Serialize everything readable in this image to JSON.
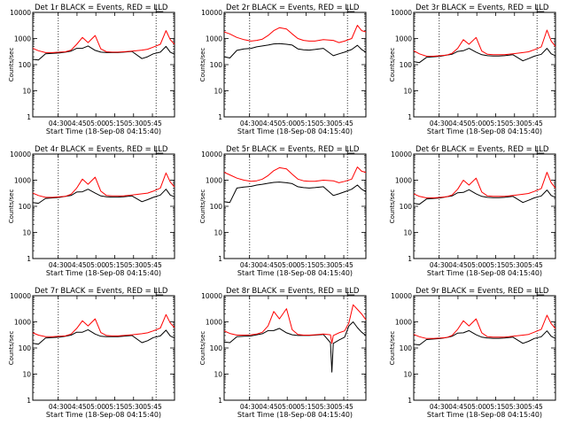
{
  "figure": {
    "x_tick_labels": [
      "04:30",
      "04:45",
      "05:00",
      "05:15",
      "05:30",
      "05:45"
    ],
    "y_tick_labels": [
      "1",
      "10",
      "100",
      "1000",
      "10000"
    ],
    "colors": {
      "events": "#000000",
      "lld": "#ff0000"
    }
  },
  "chart_data": [
    {
      "type": "line",
      "title": "Det 1r BLACK = Events, RED = LLD",
      "xlabel": "Start Time (18-Sep-08 04:15:40)",
      "ylabel": "Counts/sec",
      "y_scale": "log",
      "ylim": [
        1,
        10000
      ],
      "x": [
        0,
        4,
        9,
        14,
        19,
        23,
        27,
        31,
        35,
        39,
        44,
        48,
        52,
        56,
        60,
        64,
        70,
        77,
        81,
        85,
        90,
        94,
        97,
        100
      ],
      "series": [
        {
          "name": "BLACK = Events",
          "color": "#000000",
          "values": [
            160,
            150,
            260,
            270,
            280,
            300,
            330,
            420,
            420,
            520,
            350,
            300,
            290,
            290,
            290,
            300,
            320,
            170,
            200,
            260,
            300,
            500,
            300,
            250
          ]
        },
        {
          "name": "RED = LLD",
          "color": "#ff0000",
          "values": [
            420,
            340,
            290,
            290,
            300,
            310,
            360,
            600,
            1100,
            700,
            1300,
            400,
            310,
            300,
            300,
            310,
            330,
            360,
            390,
            470,
            600,
            2000,
            900,
            600
          ]
        }
      ]
    },
    {
      "type": "line",
      "title": "Det 2r BLACK = Events, RED = LLD",
      "xlabel": "Start Time (18-Sep-08 04:15:40)",
      "ylabel": "Counts/sec",
      "y_scale": "log",
      "ylim": [
        1,
        10000
      ],
      "x": [
        0,
        4,
        9,
        14,
        19,
        23,
        27,
        31,
        35,
        39,
        44,
        48,
        52,
        56,
        60,
        64,
        70,
        77,
        81,
        85,
        90,
        94,
        97,
        100
      ],
      "series": [
        {
          "name": "BLACK = Events",
          "color": "#000000",
          "values": [
            200,
            180,
            350,
            400,
            420,
            480,
            520,
            560,
            620,
            640,
            600,
            560,
            400,
            370,
            360,
            380,
            420,
            220,
            260,
            300,
            380,
            550,
            380,
            300
          ]
        },
        {
          "name": "RED = LLD",
          "color": "#ff0000",
          "values": [
            1800,
            1500,
            1100,
            900,
            800,
            850,
            950,
            1300,
            2000,
            2600,
            2300,
            1500,
            1000,
            850,
            800,
            800,
            900,
            850,
            700,
            800,
            1000,
            3200,
            2000,
            1800
          ]
        }
      ]
    },
    {
      "type": "line",
      "title": "Det 3r BLACK = Events, RED = LLD",
      "xlabel": "Start Time (18-Sep-08 04:15:40)",
      "ylabel": "Counts/sec",
      "y_scale": "log",
      "ylim": [
        1,
        10000
      ],
      "x": [
        0,
        4,
        9,
        14,
        19,
        23,
        27,
        31,
        35,
        39,
        44,
        48,
        52,
        56,
        60,
        64,
        70,
        77,
        81,
        85,
        90,
        94,
        97,
        100
      ],
      "series": [
        {
          "name": "BLACK = Events",
          "color": "#000000",
          "values": [
            130,
            120,
            190,
            200,
            210,
            230,
            250,
            320,
            340,
            420,
            300,
            240,
            220,
            215,
            215,
            220,
            240,
            140,
            170,
            210,
            250,
            420,
            260,
            220
          ]
        },
        {
          "name": "RED = LLD",
          "color": "#ff0000",
          "values": [
            340,
            260,
            210,
            210,
            220,
            230,
            270,
            420,
            900,
            600,
            1100,
            330,
            250,
            240,
            240,
            240,
            260,
            290,
            310,
            370,
            480,
            2100,
            800,
            500
          ]
        }
      ]
    },
    {
      "type": "line",
      "title": "Det 4r BLACK = Events, RED = LLD",
      "xlabel": "Start Time (18-Sep-08 04:15:40)",
      "ylabel": "Counts/sec",
      "y_scale": "log",
      "ylim": [
        1,
        10000
      ],
      "x": [
        0,
        4,
        9,
        14,
        19,
        23,
        27,
        31,
        35,
        39,
        44,
        48,
        52,
        56,
        60,
        64,
        70,
        77,
        81,
        85,
        90,
        94,
        97,
        100
      ],
      "series": [
        {
          "name": "BLACK = Events",
          "color": "#000000",
          "values": [
            140,
            130,
            200,
            210,
            220,
            240,
            260,
            350,
            360,
            450,
            320,
            250,
            230,
            225,
            225,
            230,
            250,
            150,
            180,
            220,
            270,
            450,
            270,
            230
          ]
        },
        {
          "name": "RED = LLD",
          "color": "#ff0000",
          "values": [
            320,
            260,
            220,
            220,
            230,
            240,
            290,
            500,
            1100,
            700,
            1300,
            380,
            260,
            250,
            250,
            250,
            270,
            300,
            320,
            380,
            500,
            1900,
            850,
            550
          ]
        }
      ]
    },
    {
      "type": "line",
      "title": "Det 5r BLACK = Events, RED = LLD",
      "xlabel": "Start Time (18-Sep-08 04:15:40)",
      "ylabel": "Counts/sec",
      "y_scale": "log",
      "ylim": [
        1,
        10000
      ],
      "x": [
        0,
        4,
        9,
        14,
        19,
        23,
        27,
        31,
        35,
        39,
        44,
        48,
        52,
        56,
        60,
        64,
        70,
        77,
        81,
        85,
        90,
        94,
        97,
        100
      ],
      "series": [
        {
          "name": "BLACK = Events",
          "color": "#000000",
          "values": [
            150,
            140,
            500,
            550,
            580,
            650,
            700,
            760,
            820,
            850,
            800,
            740,
            560,
            520,
            500,
            520,
            560,
            260,
            300,
            360,
            450,
            650,
            450,
            360
          ]
        },
        {
          "name": "RED = LLD",
          "color": "#ff0000",
          "values": [
            2000,
            1600,
            1200,
            1000,
            900,
            950,
            1100,
            1500,
            2300,
            3000,
            2700,
            1700,
            1100,
            950,
            900,
            900,
            1000,
            950,
            800,
            900,
            1100,
            3200,
            2200,
            2000
          ]
        }
      ]
    },
    {
      "type": "line",
      "title": "Det 6r BLACK = Events, RED = LLD",
      "xlabel": "Start Time (18-Sep-08 04:15:40)",
      "ylabel": "Counts/sec",
      "y_scale": "log",
      "ylim": [
        1,
        10000
      ],
      "x": [
        0,
        4,
        9,
        14,
        19,
        23,
        27,
        31,
        35,
        39,
        44,
        48,
        52,
        56,
        60,
        64,
        70,
        77,
        81,
        85,
        90,
        94,
        97,
        100
      ],
      "series": [
        {
          "name": "BLACK = Events",
          "color": "#000000",
          "values": [
            130,
            120,
            190,
            200,
            210,
            230,
            250,
            330,
            340,
            430,
            300,
            240,
            220,
            215,
            215,
            220,
            240,
            140,
            170,
            210,
            250,
            420,
            260,
            220
          ]
        },
        {
          "name": "RED = LLD",
          "color": "#ff0000",
          "values": [
            300,
            240,
            210,
            210,
            220,
            230,
            270,
            450,
            1000,
            650,
            1200,
            350,
            250,
            240,
            240,
            240,
            260,
            290,
            310,
            370,
            480,
            2000,
            800,
            500
          ]
        }
      ]
    },
    {
      "type": "line",
      "title": "Det 7r BLACK = Events, RED = LLD",
      "xlabel": "Start Time (18-Sep-08 04:15:40)",
      "ylabel": "Counts/sec",
      "y_scale": "log",
      "ylim": [
        1,
        10000
      ],
      "x": [
        0,
        4,
        9,
        14,
        19,
        23,
        27,
        31,
        35,
        39,
        44,
        48,
        52,
        56,
        60,
        64,
        70,
        77,
        81,
        85,
        90,
        94,
        97,
        100
      ],
      "series": [
        {
          "name": "BLACK = Events",
          "color": "#000000",
          "values": [
            150,
            140,
            240,
            250,
            260,
            280,
            310,
            400,
            400,
            500,
            340,
            280,
            270,
            270,
            270,
            280,
            300,
            160,
            190,
            250,
            290,
            480,
            290,
            240
          ]
        },
        {
          "name": "RED = LLD",
          "color": "#ff0000",
          "values": [
            380,
            310,
            270,
            270,
            280,
            290,
            340,
            560,
            1100,
            700,
            1300,
            390,
            300,
            290,
            290,
            300,
            320,
            350,
            380,
            450,
            580,
            1900,
            900,
            600
          ]
        }
      ]
    },
    {
      "type": "line",
      "title": "Det 8r BLACK = Events, RED = LLD",
      "xlabel": "Start Time (18-Sep-08 04:15:40)",
      "ylabel": "Counts/sec",
      "y_scale": "log",
      "ylim": [
        1,
        10000
      ],
      "x": [
        0,
        4,
        9,
        14,
        19,
        23,
        27,
        31,
        35,
        39,
        44,
        48,
        52,
        56,
        60,
        64,
        70,
        75,
        76,
        77,
        81,
        85,
        88,
        91,
        94,
        97,
        100
      ],
      "series": [
        {
          "name": "BLACK = Events",
          "color": "#000000",
          "values": [
            170,
            160,
            270,
            280,
            290,
            320,
            350,
            460,
            460,
            560,
            380,
            320,
            300,
            300,
            300,
            310,
            330,
            160,
            12,
            150,
            200,
            260,
            700,
            1000,
            600,
            400,
            300
          ]
        },
        {
          "name": "RED = LLD",
          "color": "#ff0000",
          "values": [
            450,
            360,
            310,
            310,
            320,
            340,
            400,
            700,
            2500,
            1300,
            3200,
            500,
            330,
            310,
            310,
            320,
            340,
            320,
            150,
            300,
            380,
            450,
            900,
            4500,
            3000,
            2000,
            1200
          ]
        }
      ]
    },
    {
      "type": "line",
      "title": "Det 9r BLACK = Events, RED = LLD",
      "xlabel": "Start Time (18-Sep-08 04:15:40)",
      "ylabel": "Counts/sec",
      "y_scale": "log",
      "ylim": [
        1,
        10000
      ],
      "x": [
        0,
        4,
        9,
        14,
        19,
        23,
        27,
        31,
        35,
        39,
        44,
        48,
        52,
        56,
        60,
        64,
        70,
        77,
        81,
        85,
        90,
        94,
        97,
        100
      ],
      "series": [
        {
          "name": "BLACK = Events",
          "color": "#000000",
          "values": [
            140,
            130,
            210,
            220,
            230,
            250,
            280,
            370,
            380,
            460,
            320,
            260,
            240,
            235,
            235,
            240,
            260,
            150,
            180,
            230,
            270,
            450,
            280,
            230
          ]
        },
        {
          "name": "RED = LLD",
          "color": "#ff0000",
          "values": [
            330,
            270,
            230,
            230,
            240,
            250,
            300,
            520,
            1100,
            700,
            1300,
            380,
            270,
            260,
            260,
            260,
            280,
            310,
            330,
            400,
            520,
            1800,
            850,
            550
          ]
        }
      ]
    }
  ]
}
